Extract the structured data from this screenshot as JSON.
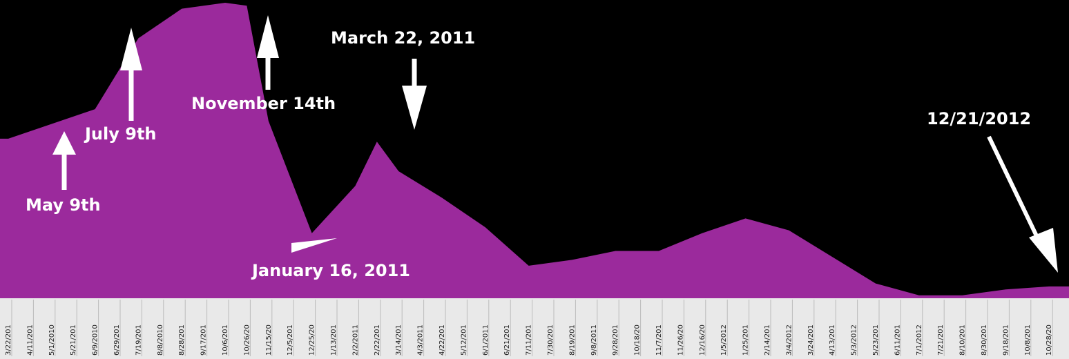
{
  "chart_data": {
    "type": "area",
    "title": "",
    "xlabel": "",
    "ylabel": "",
    "fill_color": "#9b2a9c",
    "background_color": "#000000",
    "axis_background_color": "#e9e9e9",
    "x_tick_labels": [
      "3/22/201",
      "4/11/201",
      "5/1/2010",
      "5/21/201",
      "6/9/2010",
      "6/29/201",
      "7/19/201",
      "8/8/2010",
      "8/28/201",
      "9/17/201",
      "10/6/201",
      "10/26/20",
      "11/15/20",
      "12/5/201",
      "12/25/20",
      "1/13/201",
      "2/2/2011",
      "2/22/201",
      "3/14/201",
      "4/3/2011",
      "4/22/201",
      "5/12/201",
      "6/1/2011",
      "6/21/201",
      "7/11/201",
      "7/30/201",
      "8/19/201",
      "9/8/2011",
      "9/28/201",
      "10/18/20",
      "11/7/201",
      "11/26/20",
      "12/16/20",
      "1/5/2012",
      "1/25/201",
      "2/14/201",
      "3/4/2012",
      "3/24/201",
      "4/13/201",
      "5/3/2012",
      "5/23/201",
      "6/11/201",
      "7/1/2012",
      "7/21/201",
      "8/10/201",
      "8/30/201",
      "9/18/201",
      "10/8/201",
      "10/28/20"
    ],
    "ylim": [
      0,
      100
    ],
    "series": [
      {
        "x": [
          0,
          2,
          4,
          6,
          8,
          10,
          11,
          12,
          14,
          16,
          17,
          18,
          20,
          22,
          24,
          26,
          28,
          30,
          32,
          34,
          36,
          38,
          40,
          42,
          44,
          46,
          48
        ],
        "values": [
          54,
          59,
          64,
          88,
          98,
          100,
          99,
          60,
          22,
          38,
          53,
          43,
          34,
          24,
          11,
          13,
          16,
          16,
          22,
          27,
          23,
          14,
          5,
          1,
          1,
          3,
          4
        ]
      }
    ],
    "annotations": [
      {
        "text": "May 9th",
        "arrow_direction": "up",
        "x": 2.8
      },
      {
        "text": "July 9th",
        "arrow_direction": "up",
        "x": 6.0
      },
      {
        "text": "November 14th",
        "arrow_direction": "up",
        "x": 12.3
      },
      {
        "text": "January 16, 2011",
        "arrow_direction": "left",
        "x": 15.6
      },
      {
        "text": "March 22, 2011",
        "arrow_direction": "down",
        "x": 19.0
      },
      {
        "text": "12/21/2012",
        "arrow_direction": "down-right",
        "x": 48.5
      }
    ]
  }
}
